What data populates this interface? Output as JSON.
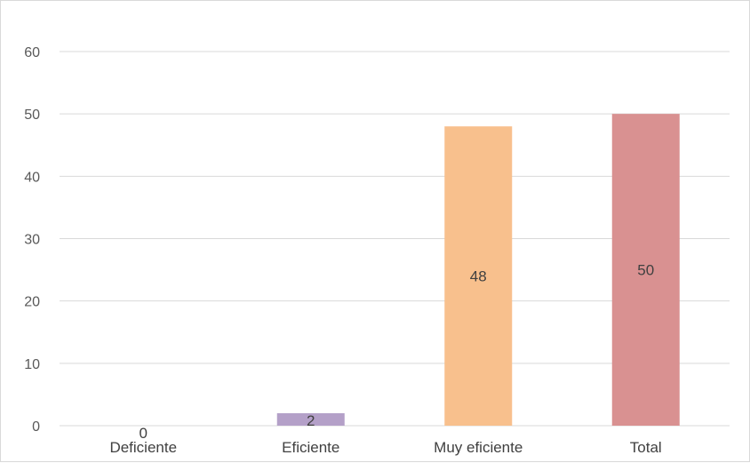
{
  "chart_data": {
    "type": "bar",
    "title": "",
    "xlabel": "",
    "ylabel": "",
    "categories": [
      "Deficiente",
      "Eficiente",
      "Muy eficiente",
      "Total"
    ],
    "values": [
      0,
      2,
      48,
      50
    ],
    "data_labels": [
      "0",
      "2",
      "48",
      "50"
    ],
    "colors": [
      "#a4a4a4",
      "#b4a0c8",
      "#f8c08d",
      "#d99191"
    ],
    "yticks": [
      "0",
      "10",
      "20",
      "30",
      "40",
      "50",
      "60"
    ],
    "ylim": [
      0,
      60
    ],
    "grid": true,
    "legend": "none"
  }
}
